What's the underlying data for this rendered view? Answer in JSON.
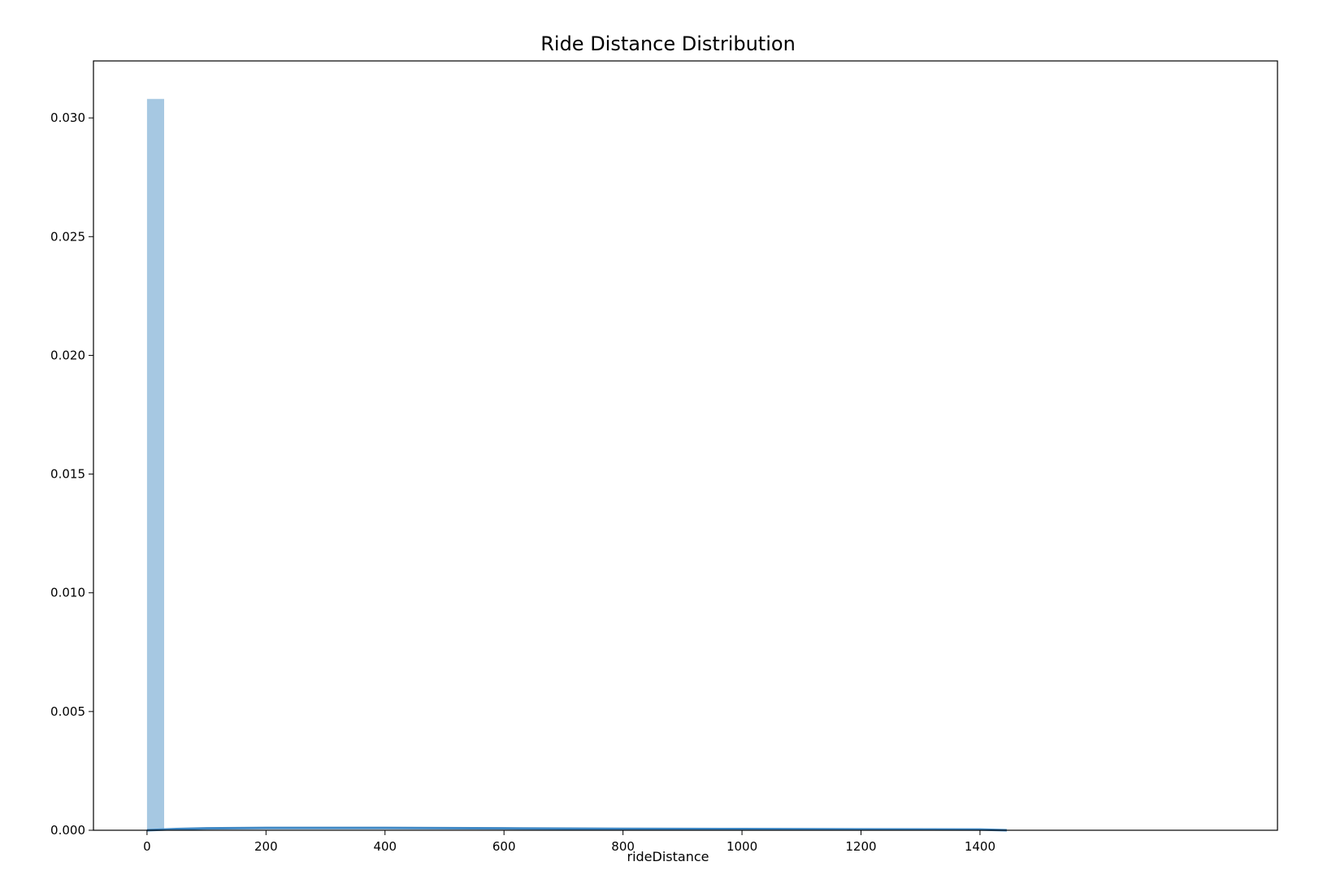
{
  "chart_data": {
    "type": "bar",
    "title": "Ride Distance Distribution",
    "xlabel": "rideDistance",
    "ylabel": "",
    "xlim": [
      -90,
      1900
    ],
    "ylim": [
      0,
      0.0324
    ],
    "x_ticks": [
      0,
      200,
      400,
      600,
      800,
      1000,
      1200,
      1400
    ],
    "x_tick_labels": [
      "0",
      "200",
      "400",
      "600",
      "800",
      "1000",
      "1200",
      "1400"
    ],
    "y_ticks": [
      0,
      0.005,
      0.01,
      0.015,
      0.02,
      0.025,
      0.03
    ],
    "y_tick_labels": [
      "0.000",
      "0.005",
      "0.010",
      "0.015",
      "0.020",
      "0.025",
      "0.030"
    ],
    "grid": false,
    "legend": "none",
    "histogram": {
      "bins": [
        {
          "x0": 0,
          "x1": 28.8,
          "density": 0.0308
        }
      ],
      "color": "#a6c8e2"
    },
    "kde": {
      "x": [
        0,
        50,
        100,
        200,
        300,
        400,
        600,
        800,
        1000,
        1200,
        1400,
        1445
      ],
      "y": [
        0.0,
        5e-05,
        8e-05,
        0.0001,
        0.0001,
        0.0001,
        8e-05,
        6e-05,
        5e-05,
        4e-05,
        3e-05,
        0.0
      ],
      "color": "#3f88c5"
    }
  }
}
